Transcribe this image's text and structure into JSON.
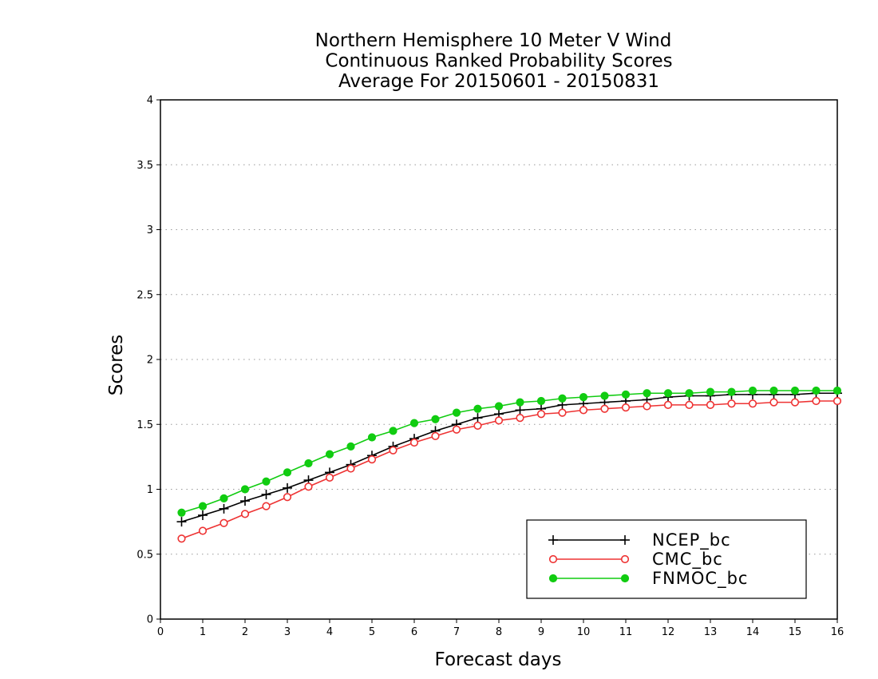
{
  "chart_data": {
    "type": "line",
    "title": [
      "Northern Hemisphere 10 Meter V Wind",
      "Continuous Ranked Probability Scores",
      "Average For 20150601 - 20150831"
    ],
    "xlabel": "Forecast days",
    "ylabel": "Scores",
    "xlim": [
      0,
      16
    ],
    "ylim": [
      0,
      4
    ],
    "xticks": [
      "0",
      "1",
      "2",
      "3",
      "4",
      "5",
      "6",
      "7",
      "8",
      "9",
      "10",
      "11",
      "12",
      "13",
      "14",
      "15",
      "16"
    ],
    "yticks": [
      "0",
      "0.5",
      "1",
      "1.5",
      "2",
      "2.5",
      "3",
      "3.5",
      "4"
    ],
    "grid": "horizontal-dotted",
    "legend_position": "bottom-right",
    "x": [
      0.5,
      1,
      1.5,
      2,
      2.5,
      3,
      3.5,
      4,
      4.5,
      5,
      5.5,
      6,
      6.5,
      7,
      7.5,
      8,
      8.5,
      9,
      9.5,
      10,
      10.5,
      11,
      11.5,
      12,
      12.5,
      13,
      13.5,
      14,
      14.5,
      15,
      15.5,
      16
    ],
    "series": [
      {
        "name": "NCEP_bc",
        "color": "#000000",
        "marker": "plus",
        "values": [
          0.75,
          0.8,
          0.85,
          0.91,
          0.96,
          1.01,
          1.07,
          1.13,
          1.19,
          1.26,
          1.33,
          1.39,
          1.45,
          1.5,
          1.55,
          1.58,
          1.61,
          1.62,
          1.65,
          1.66,
          1.67,
          1.68,
          1.69,
          1.71,
          1.72,
          1.72,
          1.73,
          1.73,
          1.73,
          1.73,
          1.74,
          1.74
        ]
      },
      {
        "name": "CMC_bc",
        "color": "#ee3333",
        "marker": "open-circle",
        "values": [
          0.62,
          0.68,
          0.74,
          0.81,
          0.87,
          0.94,
          1.02,
          1.09,
          1.16,
          1.23,
          1.3,
          1.36,
          1.41,
          1.46,
          1.49,
          1.53,
          1.55,
          1.58,
          1.59,
          1.61,
          1.62,
          1.63,
          1.64,
          1.65,
          1.65,
          1.65,
          1.66,
          1.66,
          1.67,
          1.67,
          1.68,
          1.68
        ]
      },
      {
        "name": "FNMOC_bc",
        "color": "#11cc11",
        "marker": "filled-circle",
        "values": [
          0.82,
          0.87,
          0.93,
          1.0,
          1.06,
          1.13,
          1.2,
          1.27,
          1.33,
          1.4,
          1.45,
          1.51,
          1.54,
          1.59,
          1.62,
          1.64,
          1.67,
          1.68,
          1.7,
          1.71,
          1.72,
          1.73,
          1.74,
          1.74,
          1.74,
          1.75,
          1.75,
          1.76,
          1.76,
          1.76,
          1.76,
          1.76
        ]
      }
    ]
  }
}
